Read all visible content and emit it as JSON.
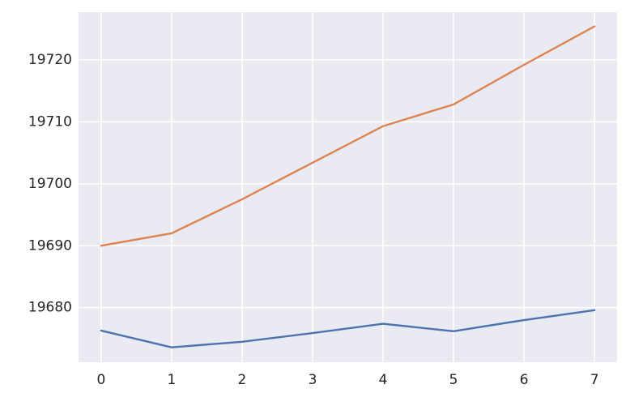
{
  "chart_data": {
    "type": "line",
    "x": [
      0,
      1,
      2,
      3,
      4,
      5,
      6,
      7
    ],
    "series": [
      {
        "color": "#4c72b0",
        "values": [
          19676.3,
          19673.6,
          19674.5,
          19675.9,
          19677.4,
          19676.2,
          19678.0,
          19679.6
        ]
      },
      {
        "color": "#dd8452",
        "values": [
          19690.0,
          19692.0,
          19697.5,
          19703.4,
          19709.3,
          19712.8,
          19719.2,
          19725.4
        ]
      }
    ],
    "xlim": [
      -0.32,
      7.32
    ],
    "xticks": [
      0,
      1,
      2,
      3,
      4,
      5,
      6,
      7
    ],
    "ylim": [
      19671.2,
      19727.7
    ],
    "yticks": [
      19680,
      19690,
      19700,
      19710,
      19720
    ],
    "grid": true,
    "background": "#eaeaf2"
  }
}
